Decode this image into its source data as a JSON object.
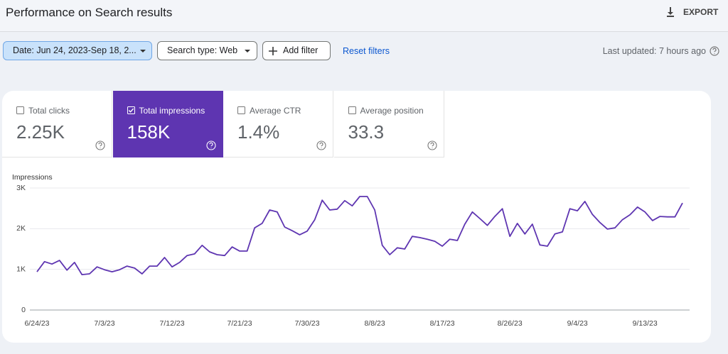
{
  "header": {
    "title": "Performance on Search results",
    "export": "EXPORT"
  },
  "toolbar": {
    "date_filter": "Date: Jun 24, 2023-Sep 18, 2...",
    "search_type": "Search type: Web",
    "add_filter": "Add filter",
    "reset_filters": "Reset filters",
    "last_updated": "Last updated: 7 hours ago"
  },
  "metrics": [
    {
      "label": "Total clicks",
      "value": "2.25K",
      "selected": false
    },
    {
      "label": "Total impressions",
      "value": "158K",
      "selected": true
    },
    {
      "label": "Average CTR",
      "value": "1.4%",
      "selected": false
    },
    {
      "label": "Average position",
      "value": "33.3",
      "selected": false
    }
  ],
  "chart_data": {
    "type": "line",
    "ylabel": "Impressions",
    "color": "#5e35b1",
    "grid": true,
    "categories": [
      "6/24/23",
      null,
      null,
      null,
      null,
      null,
      null,
      null,
      null,
      "7/3/23",
      null,
      null,
      null,
      null,
      null,
      null,
      null,
      null,
      "7/12/23",
      null,
      null,
      null,
      null,
      null,
      null,
      null,
      null,
      "7/21/23",
      null,
      null,
      null,
      null,
      null,
      null,
      null,
      null,
      "7/30/23",
      null,
      null,
      null,
      null,
      null,
      null,
      null,
      null,
      "8/8/23",
      null,
      null,
      null,
      null,
      null,
      null,
      null,
      null,
      "8/17/23",
      null,
      null,
      null,
      null,
      null,
      null,
      null,
      null,
      "8/26/23",
      null,
      null,
      null,
      null,
      null,
      null,
      null,
      null,
      "9/4/23",
      null,
      null,
      null,
      null,
      null,
      null,
      null,
      null,
      "9/13/23",
      null,
      null,
      null,
      null,
      null
    ],
    "values": [
      940,
      1190,
      1130,
      1220,
      980,
      1170,
      870,
      890,
      1060,
      990,
      940,
      990,
      1080,
      1030,
      890,
      1080,
      1080,
      1290,
      1060,
      1170,
      1340,
      1380,
      1590,
      1430,
      1360,
      1340,
      1550,
      1450,
      1450,
      2020,
      2130,
      2460,
      2410,
      2040,
      1950,
      1850,
      1940,
      2220,
      2700,
      2460,
      2480,
      2690,
      2560,
      2790,
      2790,
      2460,
      1590,
      1360,
      1530,
      1500,
      1810,
      1780,
      1740,
      1690,
      1570,
      1740,
      1710,
      2110,
      2410,
      2250,
      2080,
      2300,
      2490,
      1810,
      2130,
      1870,
      2110,
      1600,
      1570,
      1870,
      1920,
      2490,
      2440,
      2670,
      2350,
      2150,
      1990,
      2020,
      2220,
      2340,
      2530,
      2410,
      2200,
      2300,
      2290,
      2290,
      2630
    ],
    "ylim": [
      0,
      3000
    ],
    "yticks": [
      0,
      {
        "value": 1000,
        "label": "1K"
      },
      {
        "value": 2000,
        "label": "2K"
      },
      {
        "value": 3000,
        "label": "3K"
      }
    ]
  }
}
